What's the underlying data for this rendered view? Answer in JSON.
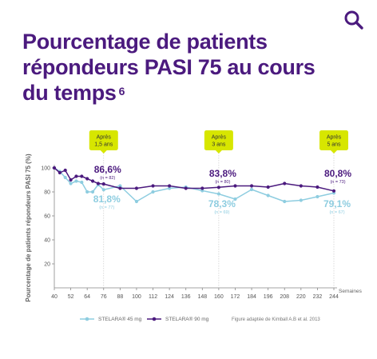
{
  "header": {
    "title": "Pourcentage de patients répondeurs PASI 75 au cours du temps",
    "title_ref": "6",
    "search_icon": "search-icon"
  },
  "colors": {
    "title": "#4b1a7e",
    "s45": "#8ecde0",
    "s90": "#4b1a7e",
    "callout": "#d7e600",
    "axis": "#888888"
  },
  "chart_data": {
    "type": "line",
    "ylabel": "Pourcentage de patients répondeurs PASI 75 (%)",
    "xlabel": "Semaines",
    "xlim": [
      40,
      244
    ],
    "ylim": [
      0,
      100
    ],
    "x_ticks": [
      40,
      52,
      64,
      76,
      88,
      100,
      112,
      124,
      136,
      148,
      160,
      172,
      184,
      196,
      208,
      220,
      232,
      244
    ],
    "y_ticks": [
      20,
      40,
      60,
      80,
      100
    ],
    "series": [
      {
        "name": "STELARA® 45 mg",
        "color": "#8ecde0",
        "points": [
          [
            40,
            100
          ],
          [
            44,
            97
          ],
          [
            48,
            92
          ],
          [
            52,
            87
          ],
          [
            56,
            89
          ],
          [
            60,
            88
          ],
          [
            64,
            80
          ],
          [
            68,
            80
          ],
          [
            72,
            86
          ],
          [
            76,
            81.8
          ],
          [
            88,
            85
          ],
          [
            100,
            72
          ],
          [
            112,
            80
          ],
          [
            124,
            83
          ],
          [
            136,
            84
          ],
          [
            148,
            81
          ],
          [
            160,
            78.3
          ],
          [
            172,
            74
          ],
          [
            184,
            82
          ],
          [
            196,
            77
          ],
          [
            208,
            72
          ],
          [
            220,
            73
          ],
          [
            232,
            76
          ],
          [
            244,
            79.1
          ]
        ]
      },
      {
        "name": "STELARA® 90 mg",
        "color": "#4b1a7e",
        "points": [
          [
            40,
            100
          ],
          [
            44,
            96
          ],
          [
            48,
            98
          ],
          [
            52,
            90
          ],
          [
            56,
            93
          ],
          [
            60,
            93
          ],
          [
            64,
            91
          ],
          [
            68,
            89
          ],
          [
            72,
            87
          ],
          [
            76,
            86.6
          ],
          [
            88,
            83
          ],
          [
            100,
            83
          ],
          [
            112,
            85
          ],
          [
            124,
            85
          ],
          [
            136,
            83
          ],
          [
            148,
            83
          ],
          [
            160,
            83.8
          ],
          [
            172,
            85
          ],
          [
            184,
            85
          ],
          [
            196,
            84
          ],
          [
            208,
            87
          ],
          [
            220,
            85
          ],
          [
            232,
            84
          ],
          [
            244,
            80.8
          ]
        ]
      }
    ],
    "callouts": [
      {
        "x": 76,
        "label": "Après 1,5 ans",
        "v90": "86,6%",
        "n90": "(n = 82)",
        "v45": "81,8%",
        "n45": "(n = 77)"
      },
      {
        "x": 160,
        "label": "Après 3 ans",
        "v90": "83,8%",
        "n90": "(n = 80)",
        "v45": "78,3%",
        "n45": "(n = 69)"
      },
      {
        "x": 244,
        "label": "Après 5 ans",
        "v90": "80,8%",
        "n90": "(n = 73)",
        "v45": "79,1%",
        "n45": "(n = 67)"
      }
    ],
    "legend": {
      "placement": "bottom"
    },
    "footnote": "Figure adaptée de Kimball A.B et al. 2013"
  }
}
